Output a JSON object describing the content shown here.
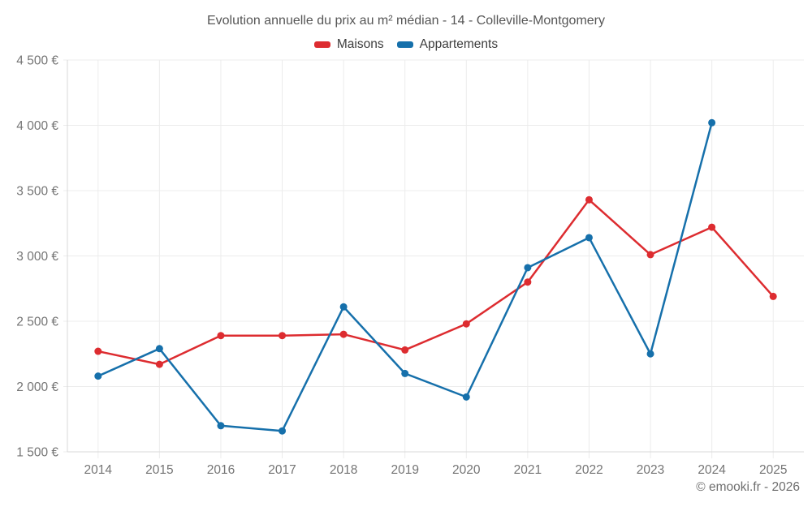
{
  "chart": {
    "title": "Evolution annuelle du prix au m² médian - 14 - Colleville-Montgomery"
  },
  "chart_data": {
    "type": "line",
    "title": "Evolution annuelle du prix au m² médian - 14 - Colleville-Montgomery",
    "x": [
      "2014",
      "2015",
      "2016",
      "2017",
      "2018",
      "2019",
      "2020",
      "2021",
      "2022",
      "2023",
      "2024",
      "2025"
    ],
    "series": [
      {
        "name": "Maisons",
        "color": "#dd2c30",
        "values": [
          2270,
          2170,
          2390,
          2390,
          2400,
          2280,
          2480,
          2800,
          3430,
          3010,
          3220,
          2690
        ]
      },
      {
        "name": "Appartements",
        "color": "#1670ab",
        "values": [
          2080,
          2290,
          1700,
          1660,
          2610,
          2100,
          1920,
          2910,
          3140,
          2250,
          4020,
          null
        ]
      }
    ],
    "ylim": [
      1500,
      4500
    ],
    "y_ticks": [
      {
        "value": 1500,
        "label": "1 500 €"
      },
      {
        "value": 2000,
        "label": "2 000 €"
      },
      {
        "value": 2500,
        "label": "2 500 €"
      },
      {
        "value": 3000,
        "label": "3 000 €"
      },
      {
        "value": 3500,
        "label": "3 500 €"
      },
      {
        "value": 4000,
        "label": "4 000 €"
      },
      {
        "value": 4500,
        "label": "4 500 €"
      }
    ],
    "xlabel": "",
    "ylabel": "",
    "grid": true,
    "legend_position": "top"
  },
  "footer": {
    "copyright": "© emooki.fr - 2026"
  }
}
